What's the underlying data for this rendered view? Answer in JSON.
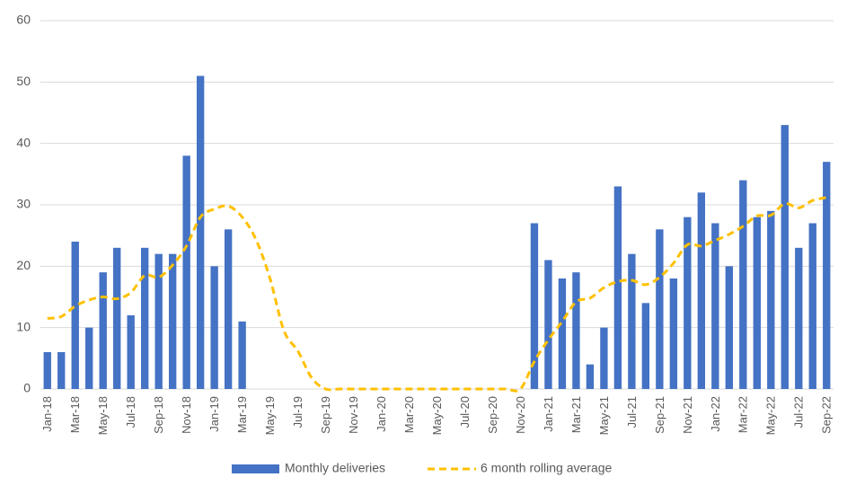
{
  "chart_data": {
    "type": "bar",
    "categories": [
      "Jan-18",
      null,
      "Mar-18",
      null,
      "May-18",
      null,
      "Jul-18",
      null,
      "Sep-18",
      null,
      "Nov-18",
      null,
      "Jan-19",
      null,
      "Mar-19",
      null,
      "May-19",
      null,
      "Jul-19",
      null,
      "Sep-19",
      null,
      "Nov-19",
      null,
      "Jan-20",
      null,
      "Mar-20",
      null,
      "May-20",
      null,
      "Jul-20",
      null,
      "Sep-20",
      null,
      "Nov-20",
      null,
      "Jan-21",
      null,
      "Mar-21",
      null,
      "May-21",
      null,
      "Jul-21",
      null,
      "Sep-21",
      null,
      "Nov-21",
      null,
      "Jan-22",
      null,
      "Mar-22",
      null,
      "May-22",
      null,
      "Jul-22",
      null,
      "Sep-22"
    ],
    "series": [
      {
        "name": "Monthly deliveries",
        "type": "bar",
        "color": "#4472c4",
        "values": [
          6,
          6,
          24,
          10,
          19,
          23,
          12,
          23,
          22,
          22,
          38,
          51,
          20,
          26,
          11,
          0,
          0,
          0,
          0,
          0,
          0,
          0,
          0,
          0,
          0,
          0,
          0,
          0,
          0,
          0,
          0,
          0,
          0,
          0,
          0,
          27,
          21,
          18,
          19,
          4,
          10,
          33,
          22,
          14,
          26,
          18,
          28,
          32,
          27,
          20,
          34,
          28,
          29,
          43,
          23,
          27,
          37
        ]
      },
      {
        "name": "6 month rolling average",
        "type": "line",
        "color": "#ffc000",
        "dashed": true,
        "smooth": true,
        "values": [
          11.5,
          11.8,
          13.5,
          14.5,
          15,
          14.7,
          15.7,
          18.5,
          18.2,
          20.2,
          23.3,
          28,
          29.3,
          29.8,
          28,
          24.3,
          18,
          9.5,
          6.2,
          1.8,
          0,
          0,
          0,
          0,
          0,
          0,
          0,
          0,
          0,
          0,
          0,
          0,
          0,
          0,
          0,
          4.5,
          8,
          11,
          14.2,
          14.8,
          16.5,
          17.5,
          17.7,
          17,
          18.2,
          20.5,
          23.5,
          23.3,
          24.2,
          25.2,
          26.5,
          28.2,
          28.3,
          30.2,
          29.5,
          30.7,
          31.2
        ]
      }
    ],
    "ylim": [
      0,
      60
    ],
    "yticks": [
      0,
      10,
      20,
      30,
      40,
      50,
      60
    ],
    "grid": true,
    "legend": "bottom"
  }
}
